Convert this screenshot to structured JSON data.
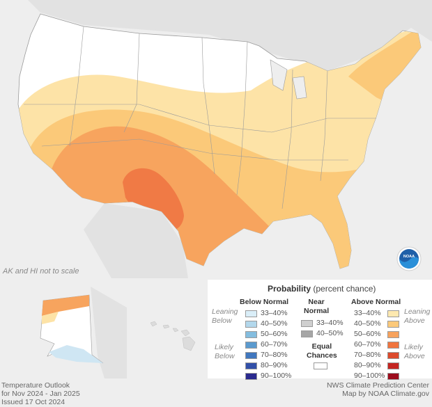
{
  "map": {
    "note": "AK and HI not to scale",
    "logo_text": "NOAA",
    "outlook_colors": {
      "land": "#ffffff",
      "background": "#eeeeee",
      "above_33_40": "#fde3a7",
      "above_40_50": "#fbc979",
      "above_50_60": "#f7a45e",
      "above_60_70": "#f07a45",
      "below_33_40": "#cfe6f3"
    }
  },
  "legend": {
    "title_bold": "Probability",
    "title_rest": " (percent chance)",
    "below": {
      "header": "Below Normal",
      "items": [
        "33–40%",
        "40–50%",
        "50–60%",
        "60–70%",
        "70–80%",
        "80–90%",
        "90–100%"
      ],
      "colors": [
        "#daeef8",
        "#b3d8ec",
        "#84bddf",
        "#5b9ace",
        "#4177be",
        "#3250a8",
        "#2a2a8e"
      ]
    },
    "near": {
      "header_line1": "Near",
      "header_line2": "Normal",
      "items": [
        "33–40%",
        "40–50%"
      ],
      "colors": [
        "#cfcfcf",
        "#a6a6a6"
      ]
    },
    "above": {
      "header": "Above Normal",
      "items": [
        "33–40%",
        "40–50%",
        "50–60%",
        "60–70%",
        "70–80%",
        "80–90%",
        "90–100%"
      ],
      "colors": [
        "#fde9b0",
        "#fbc97a",
        "#f7a25c",
        "#f0743e",
        "#dc4a2c",
        "#c42521",
        "#9c0c1c"
      ]
    },
    "side_labels": {
      "leaning_line1": "Leaning",
      "below_word": "Below",
      "above_word": "Above",
      "likely_line1": "Likely"
    },
    "equal": {
      "line1": "Equal",
      "line2": "Chances"
    }
  },
  "footer": {
    "left_line1": "Temperature Outlook",
    "left_line2": "for Nov 2024 - Jan 2025",
    "left_line3": "Issued 17 Oct 2024",
    "right_line1": "NWS Climate Prediction Center",
    "right_line2": "Map by NOAA Climate.gov"
  }
}
